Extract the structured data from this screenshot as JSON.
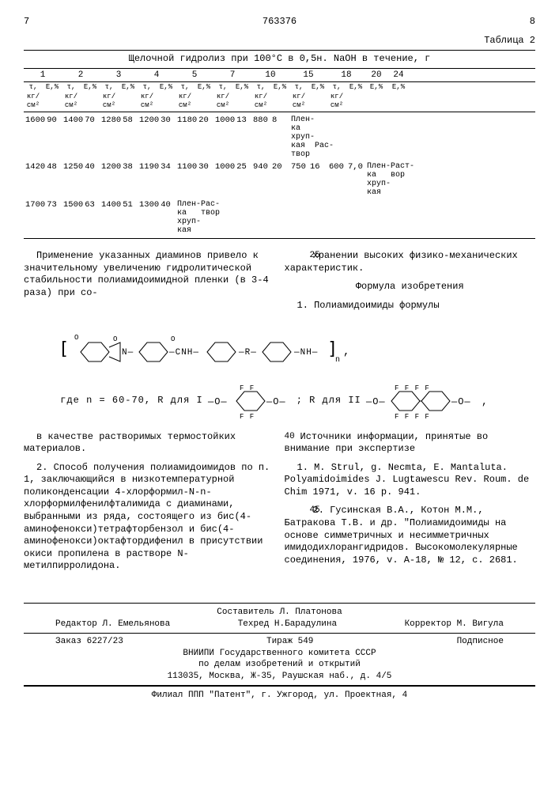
{
  "page": {
    "left_num": "7",
    "center_num": "763376",
    "right_num": "8"
  },
  "table": {
    "label": "Таблица 2",
    "title": "Щелочной гидролиз при 100°C в 0,5н. NaOH в течение, г",
    "time_headers": [
      "1",
      "2",
      "3",
      "4",
      "5",
      "7",
      "10",
      "15",
      "18",
      "20",
      "24"
    ],
    "unit_sigma": "τ, кг/см²",
    "unit_eps": "E,%",
    "rows": [
      {
        "pairs": [
          [
            "1600",
            "90"
          ],
          [
            "1400",
            "70"
          ],
          [
            "1280",
            "58"
          ],
          [
            "1200",
            "30"
          ],
          [
            "1180",
            "20"
          ],
          [
            "1000",
            "13"
          ],
          [
            "880",
            "8"
          ]
        ],
        "tail": "Плен-\nка\nхруп-\nкая  Рас-\nтвор"
      },
      {
        "pairs": [
          [
            "1420",
            "48"
          ],
          [
            "1250",
            "40"
          ],
          [
            "1200",
            "38"
          ],
          [
            "1190",
            "34"
          ],
          [
            "1100",
            "30"
          ],
          [
            "1000",
            "25"
          ],
          [
            "940",
            "20"
          ],
          [
            "750",
            "16"
          ],
          [
            "600",
            "7,0"
          ]
        ],
        "tail": "Плен-Раст-\nка   вор\nхруп-\nкая"
      },
      {
        "pairs": [
          [
            "1700",
            "73"
          ],
          [
            "1500",
            "63"
          ],
          [
            "1400",
            "51"
          ],
          [
            "1300",
            "40"
          ]
        ],
        "tail": "Плен-Рас-\nка   твор\nхруп-\nкая"
      }
    ]
  },
  "body": {
    "left1": "Применение указанных диаминов привело к значительному увеличению гидролитической стабильности полиамидоимидной пленки (в 3-4 раза) при со-",
    "right1_line25": "25",
    "right1": "хранении высоких физико-механических характеристик.",
    "right1b": "Формула изобретения",
    "right1c": "1. Полиамидоимиды формулы",
    "formula_where": "где n = 60-70, R для I",
    "formula_r2": "; R для II",
    "left2": "в качестве растворимых термостойких материалов.",
    "left3": "2. Способ получения полиамидоимидов по п. 1, заключающийся в низкотемпературной поликонденсации 4-хлорформил-N-n-хлорформилфенилфталимида с диаминами, выбранными из ряда, состоящего из бис(4-аминофенокси)тетрафторбензол и бис(4-аминофенокси)октафтордифенил в присутствии окиси пропилена в растворе N-метилпирролидона.",
    "right2_head": "Источники информации, принятые во внимание при экспертизе",
    "right2_1": "1. M. Strul, g. Necmta, E. Mantaluta. Polyamidoimides J. Lugtawescu Rev. Roum. de Chim 1971, v. 16 p. 941.",
    "right2_2": "2. Гусинская В.А., Котон М.М., Батракова Т.В. и др. \"Полиамидоимиды на основе симметричных и несимметричных имидодихлорангидридов. Высокомолекулярные соединения, 1976, v. A-18, № 12, с. 2681.",
    "ln40": "40",
    "ln45": "45"
  },
  "footer": {
    "composer": "Составитель Л. Платонова",
    "editor_l": "Редактор Л. Емельянова",
    "tehred": "Техред  Н.Барадулина",
    "corrector": "Корректор М. Вигула",
    "order": "Заказ 6227/23",
    "tirazh": "Тираж 549",
    "podpis": "Подписное",
    "org1": "ВНИИПИ Государственного комитета СССР",
    "org2": "по делам изобретений и открытий",
    "addr": "113035, Москва, Ж-35, Раушская наб., д. 4/5",
    "filial": "Филиал ППП \"Патент\", г. Ужгород, ул. Проектная, 4"
  }
}
